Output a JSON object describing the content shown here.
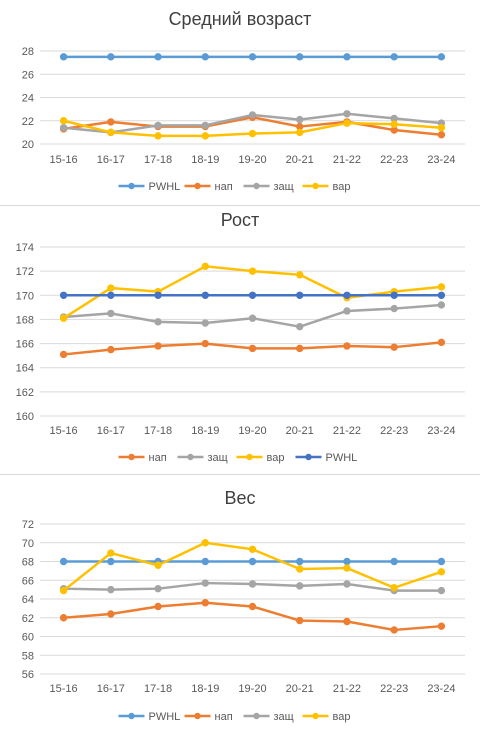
{
  "chart_data": [
    {
      "type": "line",
      "title": "Средний возраст",
      "categories": [
        "15-16",
        "16-17",
        "17-18",
        "18-19",
        "19-20",
        "20-21",
        "21-22",
        "22-23",
        "23-24"
      ],
      "ylim": [
        20,
        28
      ],
      "yticks": [
        20,
        22,
        24,
        26,
        28
      ],
      "grid": true,
      "legend": "bottom",
      "series": [
        {
          "name": "PWHL",
          "color": "#5b9bd5",
          "values": [
            27.5,
            27.5,
            27.5,
            27.5,
            27.5,
            27.5,
            27.5,
            27.5,
            27.5
          ]
        },
        {
          "name": "нап",
          "color": "#ed7d31",
          "values": [
            21.3,
            21.9,
            21.5,
            21.5,
            22.3,
            21.5,
            21.9,
            21.2,
            20.8
          ]
        },
        {
          "name": "защ",
          "color": "#a5a5a5",
          "values": [
            21.4,
            21.0,
            21.6,
            21.6,
            22.5,
            22.1,
            22.6,
            22.2,
            21.8
          ]
        },
        {
          "name": "вар",
          "color": "#ffc000",
          "values": [
            22.0,
            21.0,
            20.7,
            20.7,
            20.9,
            21.0,
            21.8,
            21.7,
            21.4
          ]
        }
      ]
    },
    {
      "type": "line",
      "title": "Рост",
      "categories": [
        "15-16",
        "16-17",
        "17-18",
        "18-19",
        "19-20",
        "20-21",
        "21-22",
        "22-23",
        "23-24"
      ],
      "ylim": [
        160,
        174
      ],
      "yticks": [
        160,
        162,
        164,
        166,
        168,
        170,
        172,
        174
      ],
      "grid": true,
      "legend": "bottom",
      "series": [
        {
          "name": "нап",
          "color": "#ed7d31",
          "values": [
            165.1,
            165.5,
            165.8,
            166.0,
            165.6,
            165.6,
            165.8,
            165.7,
            166.1
          ]
        },
        {
          "name": "защ",
          "color": "#a5a5a5",
          "values": [
            168.2,
            168.5,
            167.8,
            167.7,
            168.1,
            167.4,
            168.7,
            168.9,
            169.2
          ]
        },
        {
          "name": "вар",
          "color": "#ffc000",
          "values": [
            168.1,
            170.6,
            170.3,
            172.4,
            172.0,
            171.7,
            169.8,
            170.3,
            170.7
          ]
        },
        {
          "name": "PWHL",
          "color": "#4472c4",
          "values": [
            170.0,
            170.0,
            170.0,
            170.0,
            170.0,
            170.0,
            170.0,
            170.0,
            170.0
          ]
        }
      ]
    },
    {
      "type": "line",
      "title": "Вес",
      "categories": [
        "15-16",
        "16-17",
        "17-18",
        "18-19",
        "19-20",
        "20-21",
        "21-22",
        "22-23",
        "23-24"
      ],
      "ylim": [
        56,
        72
      ],
      "yticks": [
        56,
        58,
        60,
        62,
        64,
        66,
        68,
        70,
        72
      ],
      "grid": true,
      "legend": "bottom",
      "series": [
        {
          "name": "PWHL",
          "color": "#5b9bd5",
          "values": [
            68.0,
            68.0,
            68.0,
            68.0,
            68.0,
            68.0,
            68.0,
            68.0,
            68.0
          ]
        },
        {
          "name": "нап",
          "color": "#ed7d31",
          "values": [
            62.0,
            62.4,
            63.2,
            63.6,
            63.2,
            61.7,
            61.6,
            60.7,
            61.1
          ]
        },
        {
          "name": "защ",
          "color": "#a5a5a5",
          "values": [
            65.1,
            65.0,
            65.1,
            65.7,
            65.6,
            65.4,
            65.6,
            64.9,
            64.9
          ]
        },
        {
          "name": "вар",
          "color": "#ffc000",
          "values": [
            64.9,
            68.9,
            67.6,
            70.0,
            69.3,
            67.2,
            67.3,
            65.2,
            66.9
          ]
        }
      ]
    }
  ]
}
